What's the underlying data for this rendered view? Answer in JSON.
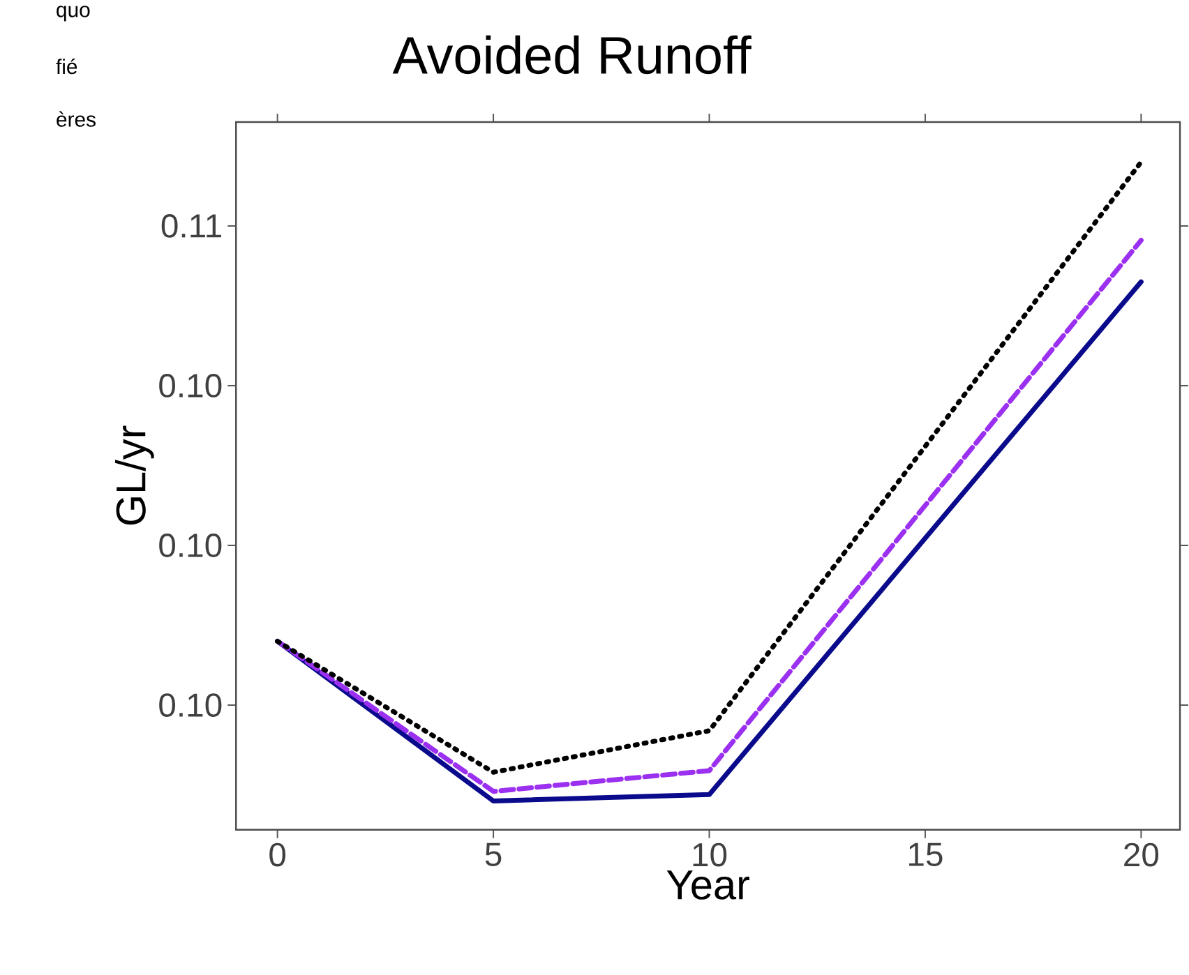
{
  "chart_data": {
    "type": "line",
    "title": "Avoided Runoff",
    "xlabel": "Year",
    "ylabel": "GL/yr",
    "annotations": [
      "quo",
      "fié",
      "ères"
    ],
    "x": [
      0,
      5,
      10,
      20
    ],
    "series": [
      {
        "color": "#000000",
        "line_style": "dotted",
        "values": [
          0.1024,
          0.10158,
          0.10184,
          0.1054
        ]
      },
      {
        "color": "#9b30f0",
        "line_style": "dashed",
        "values": [
          0.1024,
          0.10146,
          0.10159,
          0.10491
        ]
      },
      {
        "color": "#0a0a8c",
        "line_style": "solid",
        "values": [
          0.1024,
          0.1014,
          0.10144,
          0.10465
        ]
      }
    ],
    "xlim": [
      -0.96,
      20.9
    ],
    "ylim": [
      0.10122,
      0.10565
    ],
    "xticks": [
      0,
      5,
      10,
      15,
      20
    ],
    "yticks": [
      {
        "value": 0.102,
        "label": "0.10"
      },
      {
        "value": 0.103,
        "label": "0.10"
      },
      {
        "value": 0.104,
        "label": "0.10"
      },
      {
        "value": 0.105,
        "label": "0.11"
      }
    ],
    "grid": false,
    "marker": "none"
  }
}
